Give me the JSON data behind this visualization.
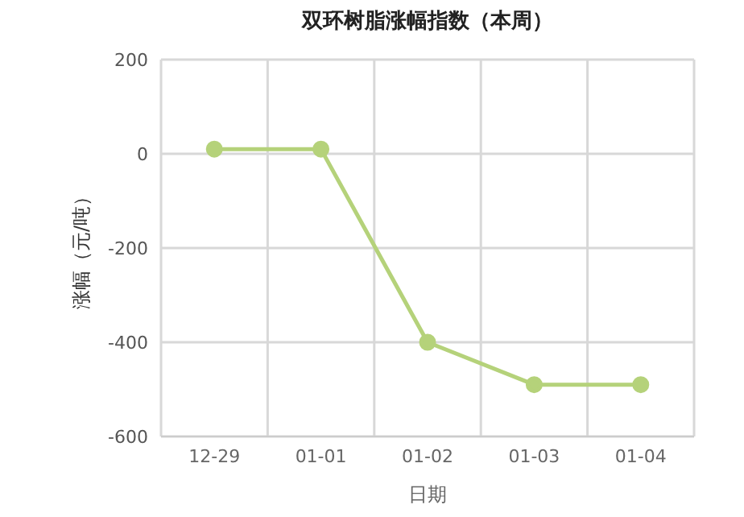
{
  "chart_data": {
    "type": "line",
    "title": "双环树脂涨幅指数（本周）",
    "xlabel": "日期",
    "ylabel": "涨幅（元/吨）",
    "categories": [
      "12-29",
      "01-01",
      "01-02",
      "01-03",
      "01-04"
    ],
    "series": [
      {
        "color": "#b5d27a",
        "values": [
          10,
          10,
          -400,
          -490,
          -490
        ]
      }
    ],
    "ylim": [
      -600,
      200
    ],
    "yticks": [
      -600,
      -400,
      -200,
      0,
      200
    ],
    "grid": true,
    "marker": "circle"
  }
}
